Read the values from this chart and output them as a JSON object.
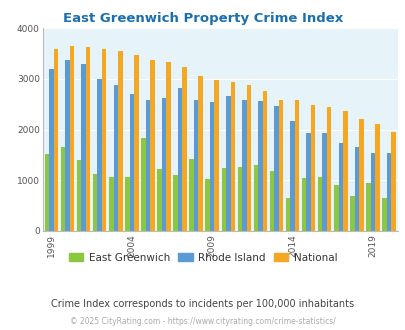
{
  "title": "East Greenwich Property Crime Index",
  "title_color": "#1a6faf",
  "years": [
    1999,
    2000,
    2001,
    2002,
    2003,
    2004,
    2005,
    2006,
    2007,
    2008,
    2009,
    2010,
    2011,
    2012,
    2013,
    2014,
    2015,
    2016,
    2017,
    2018,
    2019,
    2020
  ],
  "east_greenwich": [
    1520,
    1650,
    1400,
    1120,
    1060,
    1060,
    1840,
    1230,
    1110,
    1420,
    1020,
    1240,
    1270,
    1300,
    1190,
    660,
    1040,
    1060,
    910,
    690,
    950,
    660
  ],
  "rhode_island": [
    3190,
    3380,
    3300,
    2990,
    2880,
    2710,
    2590,
    2620,
    2820,
    2580,
    2550,
    2660,
    2590,
    2570,
    2460,
    2170,
    1930,
    1930,
    1730,
    1660,
    1540,
    1540
  ],
  "national": [
    3590,
    3650,
    3630,
    3590,
    3540,
    3460,
    3380,
    3330,
    3240,
    3050,
    2970,
    2940,
    2870,
    2760,
    2590,
    2590,
    2490,
    2450,
    2360,
    2200,
    2110,
    1960
  ],
  "east_greenwich_color": "#8dc63f",
  "rhode_island_color": "#5b9bd5",
  "national_color": "#f5a623",
  "plot_bg_color": "#e6f3f8",
  "ylim": [
    0,
    4000
  ],
  "yticks": [
    0,
    1000,
    2000,
    3000,
    4000
  ],
  "subtitle": "Crime Index corresponds to incidents per 100,000 inhabitants",
  "subtitle_color": "#444444",
  "footer": "© 2025 CityRating.com - https://www.cityrating.com/crime-statistics/",
  "footer_color": "#aaaaaa",
  "legend_labels": [
    "East Greenwich",
    "Rhode Island",
    "National"
  ],
  "xtick_years": [
    1999,
    2004,
    2009,
    2014,
    2019
  ]
}
